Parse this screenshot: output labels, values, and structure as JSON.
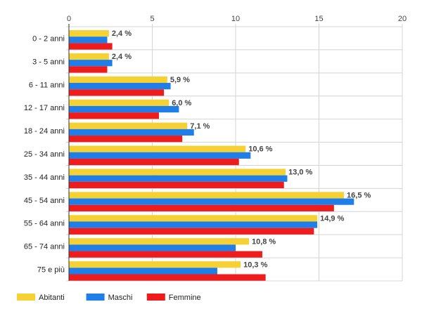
{
  "chart_data": {
    "type": "bar",
    "orientation": "horizontal",
    "categories": [
      "0 - 2 anni",
      "3 - 5 anni",
      "6 - 11 anni",
      "12 - 17 anni",
      "18 - 24 anni",
      "25 - 34 anni",
      "35 - 44 anni",
      "45 - 54 anni",
      "55 - 64 anni",
      "65 - 74 anni",
      "75 e più"
    ],
    "series": [
      {
        "name": "Abitanti",
        "color": "#f5d133",
        "values": [
          2.4,
          2.4,
          5.9,
          6.0,
          7.1,
          10.6,
          13.0,
          16.5,
          14.9,
          10.8,
          10.3
        ]
      },
      {
        "name": "Maschi",
        "color": "#1f7ee8",
        "values": [
          2.3,
          2.6,
          6.1,
          6.6,
          7.5,
          10.9,
          13.1,
          17.1,
          14.9,
          10.0,
          8.9
        ]
      },
      {
        "name": "Femmine",
        "color": "#ee1c1c",
        "values": [
          2.6,
          2.3,
          5.7,
          5.4,
          6.8,
          10.2,
          12.9,
          15.9,
          14.7,
          11.6,
          11.8
        ]
      }
    ],
    "data_labels": [
      "2,4 %",
      "2,4 %",
      "5,9 %",
      "6,0 %",
      "7,1 %",
      "10,6 %",
      "13,0 %",
      "16,5 %",
      "14,9 %",
      "10,8 %",
      "10,3 %"
    ],
    "x_ticks": [
      "0",
      "5",
      "10",
      "15",
      "20"
    ],
    "xlim": [
      0,
      20
    ],
    "xaxis_position": "top",
    "grid": true,
    "legend_position": "bottom-left",
    "title": "",
    "xlabel": "",
    "ylabel": ""
  }
}
